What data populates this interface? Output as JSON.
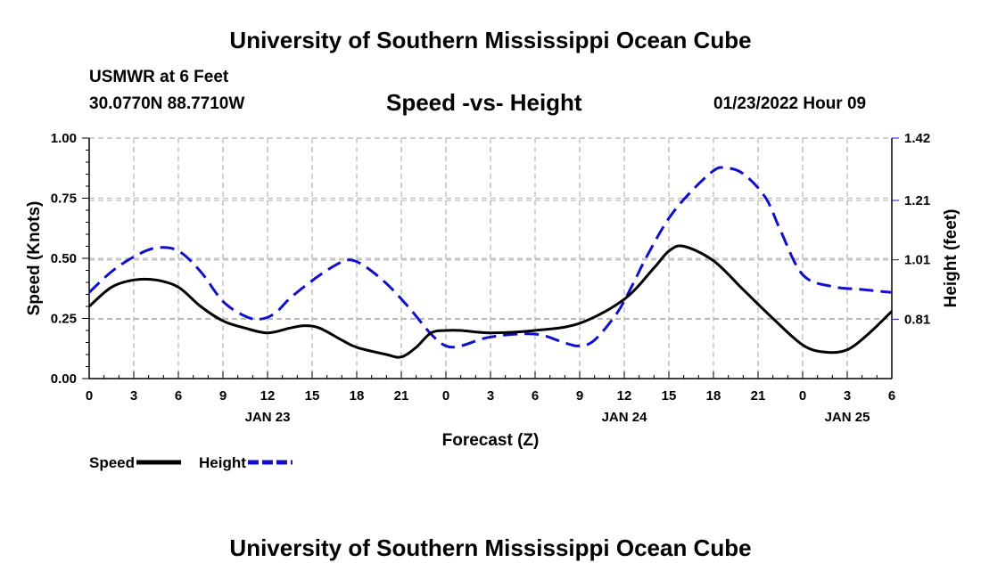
{
  "header": {
    "title": "University of Southern Mississippi Ocean Cube",
    "station": "USMWR at 6 Feet",
    "coords": "30.0770N  88.7710W",
    "subtitle": "Speed -vs- Height",
    "datetime": "01/23/2022 Hour 09"
  },
  "footer": {
    "title": "University of Southern Mississippi Ocean Cube"
  },
  "chart_data": {
    "type": "line",
    "title": "Speed -vs- Height",
    "xlabel": "Forecast (Z)",
    "ylabel": "Speed (Knots)",
    "y2label": "Height (feet)",
    "xlim": [
      0,
      54
    ],
    "ylim": [
      0,
      1
    ],
    "y2lim": [
      0.61,
      1.42
    ],
    "x_tick_hours": [
      0,
      3,
      6,
      9,
      12,
      15,
      18,
      21,
      24,
      27,
      30,
      33,
      36,
      39,
      42,
      45,
      48,
      51,
      54
    ],
    "x_tick_labels": [
      "0",
      "3",
      "6",
      "9",
      "12",
      "15",
      "18",
      "21",
      "0",
      "3",
      "6",
      "9",
      "12",
      "15",
      "18",
      "21",
      "0",
      "3",
      "6"
    ],
    "date_labels": [
      {
        "hour": 12,
        "text": "JAN 23"
      },
      {
        "hour": 36,
        "text": "JAN 24"
      },
      {
        "hour": 51,
        "text": "JAN 25"
      }
    ],
    "y_ticks": [
      0,
      0.25,
      0.5,
      0.75,
      1.0
    ],
    "y_tick_labels": [
      "0.00",
      "0.25",
      "0.50",
      "0.75",
      "1.00"
    ],
    "y2_ticks": [
      0.81,
      1.01,
      1.21,
      1.42
    ],
    "y2_tick_labels": [
      "0.81",
      "1.01",
      "1.21",
      "1.42"
    ],
    "series": [
      {
        "name": "Speed",
        "axis": "left",
        "color": "#000000",
        "dash": "solid",
        "x": [
          0,
          1.5,
          3,
          4.5,
          6,
          7.5,
          9,
          10.5,
          12,
          13.5,
          14.5,
          15.5,
          17,
          18,
          20,
          21,
          22,
          23,
          24,
          25,
          27,
          30,
          33,
          36,
          38,
          39,
          40,
          42,
          44,
          46,
          48,
          49.5,
          51,
          52.5,
          54
        ],
        "y": [
          0.3,
          0.38,
          0.41,
          0.41,
          0.38,
          0.3,
          0.24,
          0.21,
          0.19,
          0.21,
          0.22,
          0.21,
          0.16,
          0.13,
          0.1,
          0.09,
          0.13,
          0.19,
          0.2,
          0.2,
          0.19,
          0.2,
          0.23,
          0.33,
          0.46,
          0.53,
          0.55,
          0.49,
          0.37,
          0.25,
          0.14,
          0.11,
          0.12,
          0.19,
          0.28
        ]
      },
      {
        "name": "Height",
        "axis": "right",
        "color": "#1010cc",
        "dash": "dashed",
        "x": [
          0,
          1.5,
          3,
          4.5,
          6,
          7.5,
          9,
          10.5,
          11.5,
          12.5,
          13.5,
          15,
          16.5,
          17.5,
          18.5,
          20,
          21.5,
          23,
          24,
          25,
          27,
          30,
          32,
          33,
          34,
          35.5,
          36.5,
          37.5,
          39,
          40.5,
          42,
          42.75,
          44,
          45.5,
          46.5,
          48,
          50,
          52,
          54
        ],
        "y": [
          0.9,
          0.97,
          1.02,
          1.05,
          1.04,
          0.97,
          0.87,
          0.82,
          0.81,
          0.83,
          0.88,
          0.94,
          0.99,
          1.01,
          0.99,
          0.93,
          0.85,
          0.76,
          0.72,
          0.72,
          0.75,
          0.76,
          0.73,
          0.72,
          0.74,
          0.83,
          0.92,
          1.02,
          1.15,
          1.24,
          1.31,
          1.32,
          1.3,
          1.22,
          1.11,
          0.96,
          0.92,
          0.91,
          0.9
        ]
      }
    ],
    "legend": [
      {
        "label": "Speed",
        "color": "#000000",
        "dash": "solid"
      },
      {
        "label": "Height",
        "color": "#1010cc",
        "dash": "dashed"
      }
    ],
    "grid": true,
    "legend_position": "bottom-left"
  }
}
